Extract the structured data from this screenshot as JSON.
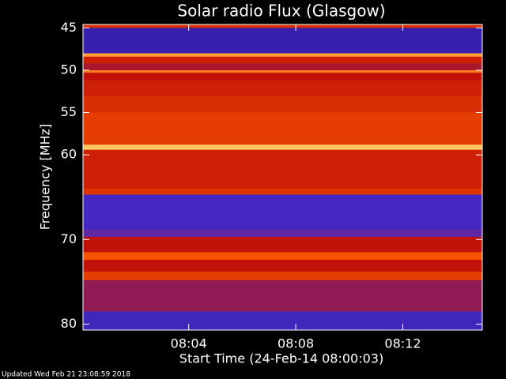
{
  "chart_data": {
    "type": "heatmap",
    "title": "Solar radio Flux (Glasgow)",
    "x_label": "Start Time (24-Feb-14 08:00:03)",
    "y_label": "Frequency [MHz]",
    "footer": "Updated Wed Feb 21 23:08:59 2018",
    "xlim": [
      0.05,
      14.97
    ],
    "xticks": [
      {
        "value": 4,
        "label": "08:04"
      },
      {
        "value": 8,
        "label": "08:08"
      },
      {
        "value": 12,
        "label": "08:12"
      }
    ],
    "ylim": [
      44.6,
      80.7
    ],
    "y_inverted": true,
    "yticks": [
      45,
      50,
      55,
      60,
      70,
      80
    ],
    "colorscale": [
      "#1c0c8c",
      "#4a2cc8",
      "#c01208",
      "#ff5a00",
      "#ffff90"
    ],
    "y": [
      44.6,
      45.0,
      48.0,
      48.4,
      49.2,
      50.0,
      50.3,
      51.2,
      53.0,
      55.0,
      58.8,
      59.4,
      64.0,
      64.7,
      68.8,
      69.7,
      71.5,
      72.4,
      73.8,
      74.8,
      78.5,
      80.7
    ],
    "values": [
      0.6,
      0.15,
      0.85,
      0.55,
      0.45,
      0.8,
      0.5,
      0.55,
      0.6,
      0.65,
      0.92,
      0.55,
      0.62,
      0.22,
      0.3,
      0.5,
      0.72,
      0.5,
      0.65,
      0.4,
      0.2
    ]
  }
}
